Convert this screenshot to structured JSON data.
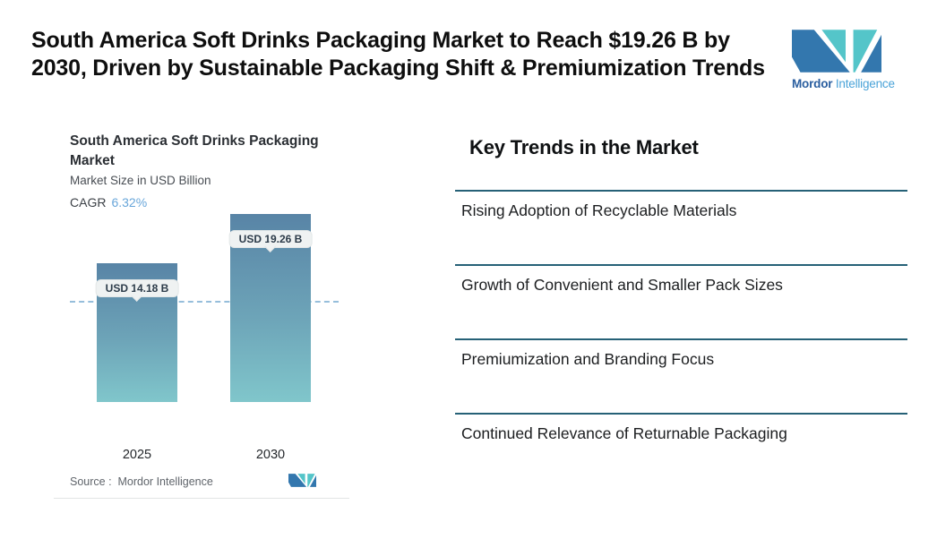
{
  "page": {
    "title": "South America Soft Drinks Packaging Market to Reach $19.26 B by\n2030, Driven by Sustainable Packaging Shift & Premiumization Trends"
  },
  "brand": {
    "logo_icon": "mordor-intelligence-monogram",
    "wordmark_bold": "Mordor",
    "wordmark_light": "Intelligence",
    "colors": {
      "logo_blue": "#3377ae",
      "logo_teal": "#54c5c9",
      "wordmark_blue": "#2a5e9f",
      "wordmark_light_blue": "#4aa3d8"
    }
  },
  "chart_card": {
    "title": "South America Soft Drinks Packaging Market",
    "subtitle": "Market Size in USD Billion",
    "cagr_label": "CAGR",
    "cagr_value": "6.32%",
    "source_text": "Source :  Mordor Intelligence",
    "colors": {
      "bar_gradient_top": "#5884a6",
      "bar_gradient_bottom": "#80c6cb",
      "dashed_line": "#96bedb",
      "cagr_value_blue": "#68a6da",
      "pill_background": "#eff2f2"
    }
  },
  "chart_data": {
    "type": "bar",
    "title": "South America Soft Drinks Packaging Market",
    "ylabel": "Market Size in USD Billion",
    "xlabel": "",
    "categories": [
      "2025",
      "2030"
    ],
    "values": [
      14.18,
      19.26
    ],
    "value_labels": [
      "USD 14.18 B",
      "USD 19.26 B"
    ],
    "cagr_pct": 6.32,
    "grid": false,
    "legend": false,
    "annotations": [
      "horizontal dashed reference line at 2025 value of 14.18"
    ],
    "source": "Mordor Intelligence"
  },
  "key_trends": {
    "heading": "Key Trends in the Market",
    "divider_color": "#266177",
    "items": [
      "Rising Adoption of Recyclable Materials",
      "Growth of Convenient and Smaller Pack Sizes",
      "Premiumization and Branding Focus",
      "Continued Relevance of Returnable Packaging"
    ]
  }
}
